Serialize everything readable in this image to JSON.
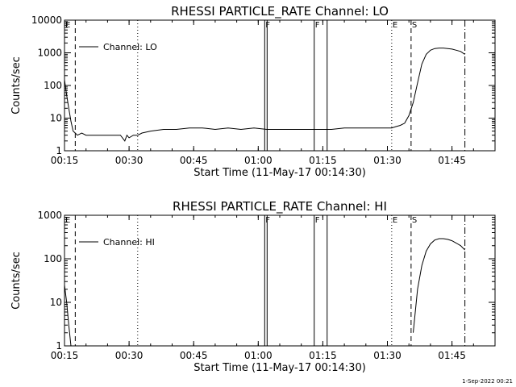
{
  "footer": {
    "date_stamp": "1-Sep-2022 00:21"
  },
  "chart_data": [
    {
      "type": "line",
      "title": "RHESSI PARTICLE_RATE Channel: LO",
      "xlabel": "Start Time (11-May-17 00:14:30)",
      "ylabel": "Counts/sec",
      "yscale": "log",
      "xlim": [
        "00:15",
        "01:55"
      ],
      "ylim": [
        1,
        10000
      ],
      "x_ticks": [
        "00:15",
        "00:30",
        "00:45",
        "01:00",
        "01:15",
        "01:30",
        "01:45"
      ],
      "y_ticks": [
        "1",
        "10",
        "100",
        "1000",
        "10000"
      ],
      "legend": {
        "position": "top-left",
        "entries": [
          "Channel: LO"
        ]
      },
      "grid": false,
      "markers": [
        {
          "label": "E",
          "time": "00:15",
          "style": "dotted"
        },
        {
          "label": "",
          "time": "00:17:30",
          "style": "dashed"
        },
        {
          "label": "",
          "time": "00:32",
          "style": "dotted"
        },
        {
          "label": "F",
          "time": "01:01:30",
          "style": "solid-double"
        },
        {
          "label": "F",
          "time": "01:13",
          "style": "solid"
        },
        {
          "label": "",
          "time": "01:16",
          "style": "solid"
        },
        {
          "label": "E",
          "time": "01:31",
          "style": "dotted"
        },
        {
          "label": "S",
          "time": "01:35:30",
          "style": "dashed"
        },
        {
          "label": "",
          "time": "01:48",
          "style": "dash-dot"
        }
      ],
      "series": [
        {
          "name": "Channel: LO",
          "segments": [
            {
              "x": [
                "00:15",
                "00:15:30",
                "00:16",
                "00:16:30",
                "00:17",
                "00:17:30",
                "00:18",
                "00:19",
                "00:20",
                "00:22",
                "00:24",
                "00:26",
                "00:28",
                "00:29",
                "00:29:30",
                "00:30",
                "00:31",
                "00:32",
                "00:33",
                "00:35",
                "00:38",
                "00:41",
                "00:44",
                "00:47",
                "00:50",
                "00:53",
                "00:56",
                "00:59",
                "01:02",
                "01:05",
                "01:08",
                "01:11",
                "01:14",
                "01:17",
                "01:20",
                "01:23",
                "01:26",
                "01:29",
                "01:31",
                "01:32",
                "01:33",
                "01:34",
                "01:35",
                "01:36",
                "01:37",
                "01:38",
                "01:39",
                "01:40",
                "01:41",
                "01:42",
                "01:43",
                "01:44",
                "01:45",
                "01:46",
                "01:47",
                "01:48"
              ],
              "y": [
                150,
                50,
                20,
                8,
                4,
                3.5,
                3,
                3.5,
                3,
                3,
                3,
                3,
                3,
                2,
                3,
                2.5,
                3,
                3,
                3.5,
                4,
                4.5,
                4.5,
                5,
                5,
                4.5,
                5,
                4.5,
                5,
                4.5,
                4.5,
                4.5,
                4.5,
                4.5,
                4.5,
                5,
                5,
                5,
                5,
                5,
                5.5,
                6,
                7,
                12,
                30,
                120,
                450,
                900,
                1200,
                1350,
                1400,
                1400,
                1350,
                1300,
                1200,
                1100,
                900
              ]
            }
          ]
        }
      ]
    },
    {
      "type": "line",
      "title": "RHESSI PARTICLE_RATE Channel: HI",
      "xlabel": "Start Time (11-May-17 00:14:30)",
      "ylabel": "Counts/sec",
      "yscale": "log",
      "xlim": [
        "00:15",
        "01:55"
      ],
      "ylim": [
        1,
        1000
      ],
      "x_ticks": [
        "00:15",
        "00:30",
        "00:45",
        "01:00",
        "01:15",
        "01:30",
        "01:45"
      ],
      "y_ticks": [
        "1",
        "10",
        "100",
        "1000"
      ],
      "legend": {
        "position": "top-left",
        "entries": [
          "Channel: HI"
        ]
      },
      "grid": false,
      "markers": [
        {
          "label": "E",
          "time": "00:15",
          "style": "dotted"
        },
        {
          "label": "",
          "time": "00:17:30",
          "style": "dashed"
        },
        {
          "label": "",
          "time": "00:32",
          "style": "dotted"
        },
        {
          "label": "F",
          "time": "01:01:30",
          "style": "solid-double"
        },
        {
          "label": "F",
          "time": "01:13",
          "style": "solid"
        },
        {
          "label": "",
          "time": "01:16",
          "style": "solid"
        },
        {
          "label": "E",
          "time": "01:31",
          "style": "dotted"
        },
        {
          "label": "S",
          "time": "01:35:30",
          "style": "dashed"
        },
        {
          "label": "",
          "time": "01:48",
          "style": "dash-dot"
        }
      ],
      "series": [
        {
          "name": "Channel: HI",
          "segments": [
            {
              "x": [
                "00:15",
                "00:15:30",
                "00:16",
                "00:16:30"
              ],
              "y": [
                25,
                10,
                3,
                1
              ]
            },
            {
              "x": [
                "01:36",
                "01:37",
                "01:38",
                "01:39",
                "01:40",
                "01:41",
                "01:42",
                "01:43",
                "01:44",
                "01:45",
                "01:46",
                "01:47",
                "01:48"
              ],
              "y": [
                2,
                20,
                70,
                150,
                220,
                270,
                290,
                290,
                280,
                260,
                230,
                200,
                160
              ]
            }
          ]
        }
      ]
    }
  ]
}
